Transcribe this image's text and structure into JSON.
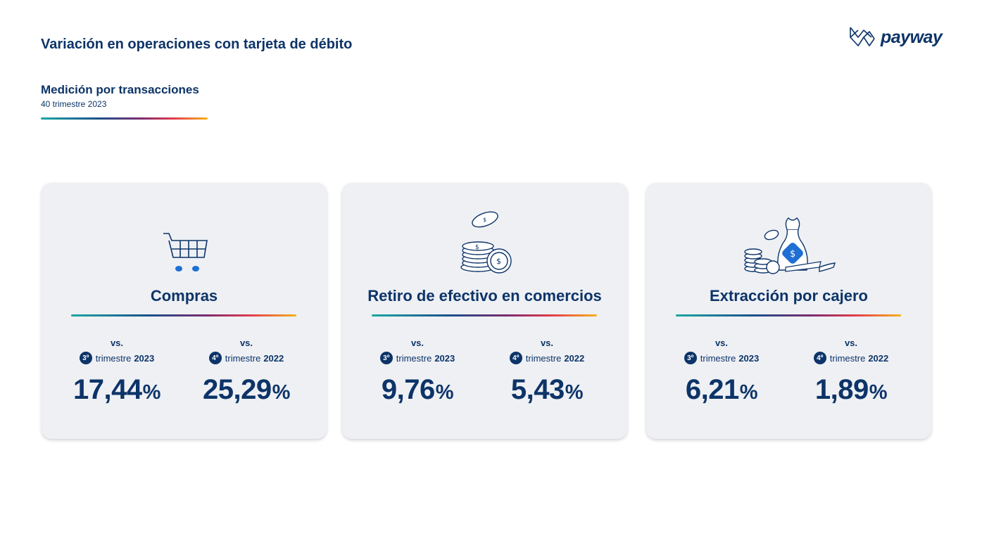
{
  "header": {
    "title": "Variación en operaciones con tarjeta de débito",
    "subtitle": "Medición por transacciones",
    "period": "40 trimestre 2023"
  },
  "brand": {
    "logo_text": "payway",
    "color_primary": "#0d3468",
    "icon": "payway-logo-icon"
  },
  "cards": [
    {
      "title": "Compras",
      "icon": "shopping-cart-icon",
      "stats": [
        {
          "vs": "vs.",
          "badge": "3º",
          "trimestre": "trimestre",
          "year": "2023",
          "value": "17,44",
          "unit": "%"
        },
        {
          "vs": "vs.",
          "badge": "4º",
          "trimestre": "trimestre",
          "year": "2022",
          "value": "25,29",
          "unit": "%"
        }
      ]
    },
    {
      "title": "Retiro de efectivo en comercios",
      "icon": "coins-stack-icon",
      "stats": [
        {
          "vs": "vs.",
          "badge": "3º",
          "trimestre": "trimestre",
          "year": "2023",
          "value": "9,76",
          "unit": "%"
        },
        {
          "vs": "vs.",
          "badge": "4º",
          "trimestre": "trimestre",
          "year": "2022",
          "value": "5,43",
          "unit": "%"
        }
      ]
    },
    {
      "title": "Extracción por cajero",
      "icon": "money-bag-icon",
      "stats": [
        {
          "vs": "vs.",
          "badge": "3º",
          "trimestre": "trimestre",
          "year": "2023",
          "value": "6,21",
          "unit": "%"
        },
        {
          "vs": "vs.",
          "badge": "4º",
          "trimestre": "trimestre",
          "year": "2022",
          "value": "1,89",
          "unit": "%"
        }
      ]
    }
  ]
}
